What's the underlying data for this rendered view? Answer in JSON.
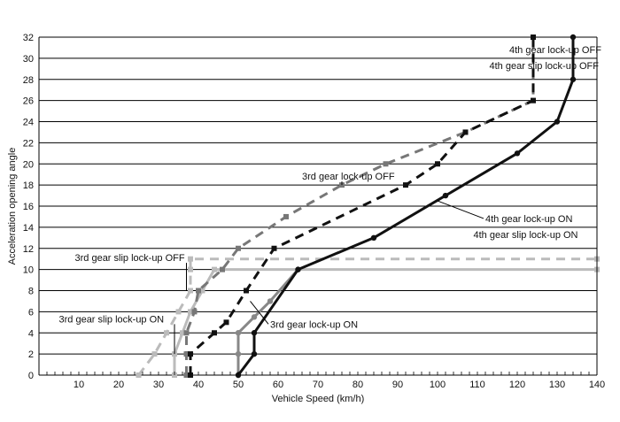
{
  "chart_data": {
    "type": "line",
    "title": "",
    "xlabel": "Vehicle Speed (km/h)",
    "ylabel": "Acceleration opening angle",
    "xlim": [
      0,
      140
    ],
    "ylim": [
      0,
      32
    ],
    "x_ticks": [
      10,
      20,
      30,
      40,
      50,
      60,
      70,
      80,
      90,
      100,
      110,
      120,
      130,
      140
    ],
    "y_ticks": [
      0,
      2,
      4,
      6,
      8,
      10,
      12,
      14,
      16,
      18,
      20,
      22,
      24,
      26,
      28,
      30,
      32
    ],
    "grid": "horizontal",
    "x_axis_dotted_ticks": true,
    "series": [
      {
        "color": "#bbbbbb",
        "style": "dashed",
        "marker": "square",
        "points": [
          [
            25,
            0
          ],
          [
            29,
            2
          ],
          [
            32,
            4
          ],
          [
            35,
            6
          ],
          [
            38,
            8
          ],
          [
            38,
            10
          ],
          [
            38,
            11
          ],
          [
            140,
            11
          ]
        ]
      },
      {
        "color": "#bbbbbb",
        "style": "solid",
        "marker": "square",
        "points": [
          [
            34,
            0
          ],
          [
            34,
            2
          ],
          [
            36,
            4
          ],
          [
            38,
            6
          ],
          [
            41,
            8
          ],
          [
            44,
            10
          ],
          [
            140,
            10
          ]
        ]
      },
      {
        "color": "#777777",
        "style": "dashed",
        "marker": "square",
        "points": [
          [
            37,
            0
          ],
          [
            37,
            2
          ],
          [
            37,
            4
          ],
          [
            39,
            6
          ],
          [
            40,
            8
          ],
          [
            46,
            10
          ],
          [
            50,
            12
          ],
          [
            62,
            15
          ],
          [
            76,
            18
          ],
          [
            87,
            20
          ],
          [
            107,
            23
          ],
          [
            124,
            26
          ],
          [
            124,
            32
          ]
        ]
      },
      {
        "color": "#888888",
        "style": "solid",
        "marker": "circle",
        "points": [
          [
            50,
            0
          ],
          [
            50,
            2
          ],
          [
            50,
            4
          ],
          [
            54,
            5.5
          ],
          [
            58,
            7
          ],
          [
            65,
            10
          ]
        ]
      },
      {
        "color": "#111111",
        "style": "dashed",
        "marker": "square",
        "points": [
          [
            38,
            0
          ],
          [
            38,
            2
          ],
          [
            44,
            4
          ],
          [
            47,
            5
          ],
          [
            52,
            8
          ],
          [
            59,
            12
          ],
          [
            92,
            18
          ],
          [
            100,
            20
          ],
          [
            107,
            23
          ],
          [
            124,
            26
          ],
          [
            124,
            32
          ]
        ]
      },
      {
        "color": "#111111",
        "style": "solid",
        "marker": "circle",
        "points": [
          [
            50,
            0
          ],
          [
            54,
            2
          ],
          [
            54,
            4
          ],
          [
            65,
            10
          ],
          [
            84,
            13
          ],
          [
            102,
            17
          ],
          [
            120,
            21
          ],
          [
            130,
            24
          ],
          [
            134,
            28
          ],
          [
            134,
            32
          ]
        ]
      }
    ],
    "annotations": [
      {
        "text": "4th gear lock-up OFF",
        "at": [
          118,
          30.5
        ],
        "arrow_to": [
          124,
          29.5
        ]
      },
      {
        "text": "4th gear slip lock-up OFF",
        "at": [
          113,
          29
        ]
      },
      {
        "text": "3rd gear lock-up OFF",
        "at": [
          66,
          18.5
        ],
        "arrow_to": [
          76,
          18
        ]
      },
      {
        "text": "4th gear lock-up ON",
        "at": [
          112,
          14.5
        ],
        "arrow_to": [
          100,
          16.5
        ]
      },
      {
        "text": "4th gear slip lock-up ON",
        "at": [
          109,
          13
        ]
      },
      {
        "text": "3rd gear slip lock-up OFF",
        "at": [
          9,
          10.8
        ],
        "arrow_to": [
          37,
          8
        ]
      },
      {
        "text": "3rd gear lock-up ON",
        "at": [
          58,
          4.5
        ],
        "arrow_to": [
          53,
          7
        ]
      },
      {
        "text": "3rd gear slip lock-up ON",
        "at": [
          5,
          5
        ],
        "arrow_to": [
          34,
          2
        ]
      }
    ]
  }
}
